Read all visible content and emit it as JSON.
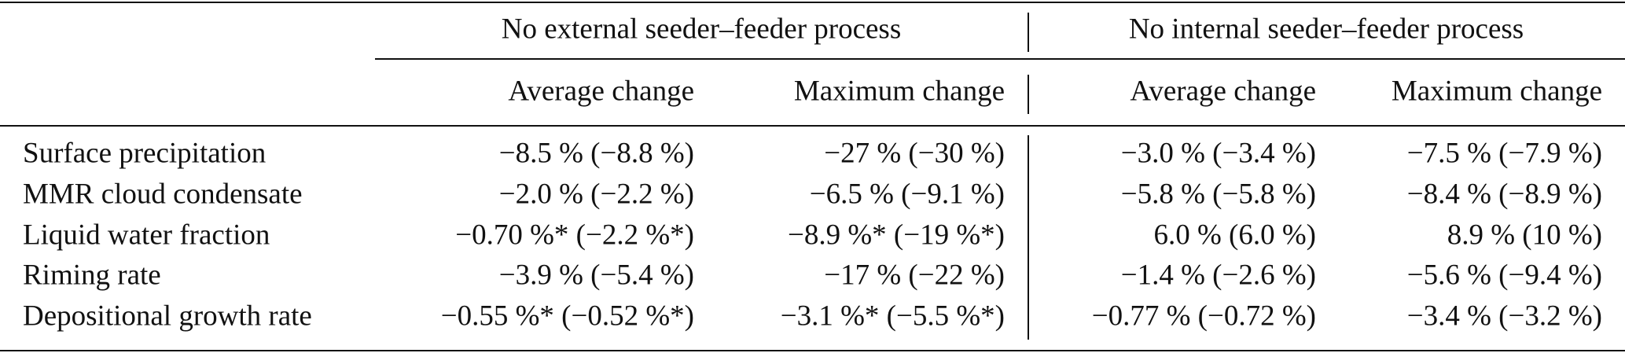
{
  "table": {
    "groups": [
      "No external seeder–feeder process",
      "No internal seeder–feeder process"
    ],
    "columns": [
      "Average change",
      "Maximum change",
      "Average change",
      "Maximum change"
    ],
    "rows": [
      [
        "Surface precipitation",
        "−8.5 % (−8.8 %)",
        "−27 % (−30 %)",
        "−3.0 % (−3.4 %)",
        "−7.5 % (−7.9 %)"
      ],
      [
        "MMR cloud condensate",
        "−2.0 % (−2.2 %)",
        "−6.5 % (−9.1 %)",
        "−5.8 % (−5.8 %)",
        "−8.4 % (−8.9 %)"
      ],
      [
        "Liquid water fraction",
        "−0.70 %* (−2.2 %*)",
        "−8.9 %* (−19 %*)",
        "6.0 % (6.0 %)",
        "8.9 % (10 %)"
      ],
      [
        "Riming rate",
        "−3.9 % (−5.4 %)",
        "−17 % (−22 %)",
        "−1.4 % (−2.6 %)",
        "−5.6  % (−9.4 %)"
      ],
      [
        "Depositional growth rate",
        "−0.55 %* (−0.52 %*)",
        "−3.1 %* (−5.5 %*)",
        "−0.77 % (−0.72 %)",
        "−3.4 % (−3.2 %)"
      ]
    ]
  }
}
